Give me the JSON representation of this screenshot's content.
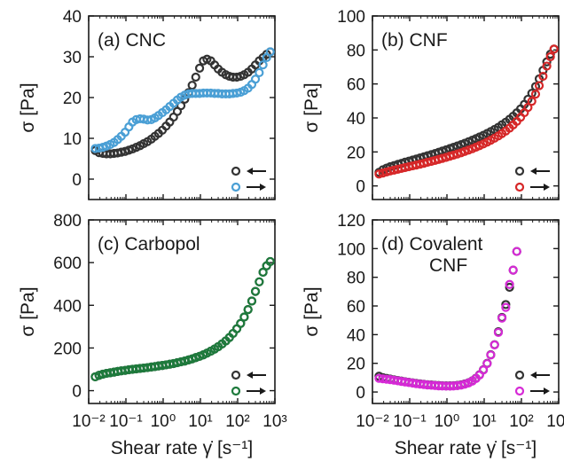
{
  "chart_data": [
    {
      "type": "scatter",
      "title": "(a) CNC",
      "xlabel": "",
      "ylabel": "σ [Pa]",
      "xscale": "log",
      "xlim": [
        0.01,
        1000
      ],
      "ylim": [
        -5,
        40
      ],
      "yticks": [
        "0",
        "10",
        "20",
        "30",
        "40"
      ],
      "xticks": [
        "",
        "",
        "",
        "",
        "",
        ""
      ],
      "legend_position": "bottom-right",
      "series": [
        {
          "marker_color": "#333333",
          "arrow": "←",
          "x": [
            0.015,
            0.019,
            0.024,
            0.03,
            0.038,
            0.048,
            0.06,
            0.075,
            0.095,
            0.12,
            0.15,
            0.19,
            0.24,
            0.3,
            0.38,
            0.48,
            0.6,
            0.75,
            0.95,
            1.2,
            1.5,
            1.9,
            2.4,
            3,
            3.8,
            4.8,
            6,
            7.5,
            9.5,
            12,
            15,
            19,
            24,
            30,
            38,
            48,
            60,
            75,
            95,
            120,
            150,
            190,
            240,
            300,
            380,
            480,
            600,
            750
          ],
          "y": [
            7,
            6.5,
            6.3,
            6.2,
            6.2,
            6.3,
            6.4,
            6.6,
            6.8,
            7.1,
            7.4,
            7.8,
            8.2,
            8.7,
            9.2,
            9.8,
            10.5,
            11.2,
            12,
            13,
            14,
            15.2,
            16.6,
            18,
            19.6,
            21.2,
            23,
            25,
            27.2,
            29,
            29.4,
            29,
            28,
            27,
            26.2,
            25.6,
            25.2,
            25,
            25,
            25.2,
            25.6,
            26.2,
            27,
            28,
            29,
            29.8,
            30.6,
            31.2
          ]
        },
        {
          "marker_color": "#4a9fd5",
          "arrow": "→",
          "x": [
            0.015,
            0.019,
            0.024,
            0.03,
            0.038,
            0.048,
            0.06,
            0.075,
            0.095,
            0.12,
            0.15,
            0.19,
            0.24,
            0.3,
            0.38,
            0.48,
            0.6,
            0.75,
            0.95,
            1.2,
            1.5,
            1.9,
            2.4,
            3,
            3.8,
            4.8,
            6,
            7.5,
            9.5,
            12,
            15,
            19,
            24,
            30,
            38,
            48,
            60,
            75,
            95,
            120,
            150,
            190,
            240,
            300,
            380,
            480,
            600,
            750
          ],
          "y": [
            7.5,
            7.6,
            7.8,
            8.1,
            8.5,
            9,
            9.7,
            10.5,
            11.5,
            12.8,
            14,
            14.6,
            14.8,
            14.7,
            14.5,
            14.6,
            15,
            15.6,
            16.3,
            17,
            17.8,
            18.6,
            19.4,
            20.1,
            20.6,
            20.9,
            21,
            21,
            21,
            21.1,
            21.1,
            21.1,
            21,
            21,
            20.9,
            20.9,
            20.9,
            21,
            21.1,
            21.3,
            21.7,
            22.3,
            23.2,
            24.5,
            26.1,
            28,
            29.8,
            31.2
          ]
        }
      ]
    },
    {
      "type": "scatter",
      "title": "(b) CNF",
      "xlabel": "",
      "ylabel": "σ [Pa]",
      "xscale": "log",
      "xlim": [
        0.01,
        1000
      ],
      "ylim": [
        -8,
        100
      ],
      "yticks": [
        "0",
        "20",
        "40",
        "60",
        "80",
        "100"
      ],
      "xticks": [
        "",
        "",
        "",
        "",
        "",
        ""
      ],
      "legend_position": "bottom-right",
      "series": [
        {
          "marker_color": "#333333",
          "arrow": "←",
          "x": [
            0.015,
            0.019,
            0.024,
            0.03,
            0.038,
            0.048,
            0.06,
            0.075,
            0.095,
            0.12,
            0.15,
            0.19,
            0.24,
            0.3,
            0.38,
            0.48,
            0.6,
            0.75,
            0.95,
            1.2,
            1.5,
            1.9,
            2.4,
            3,
            3.8,
            4.8,
            6,
            7.5,
            9.5,
            12,
            15,
            19,
            24,
            30,
            38,
            48,
            60,
            75,
            95,
            120,
            150,
            190,
            240,
            300,
            380,
            480,
            600,
            750
          ],
          "y": [
            8,
            9.5,
            10.5,
            11.3,
            12,
            12.7,
            13.3,
            14,
            14.6,
            15.2,
            15.8,
            16.5,
            17.1,
            17.8,
            18.4,
            19.1,
            19.8,
            20.5,
            21.2,
            22,
            22.7,
            23.5,
            24.3,
            25.1,
            26,
            26.9,
            27.8,
            28.8,
            29.8,
            30.9,
            32,
            33.2,
            34.5,
            36,
            37.5,
            39.2,
            41,
            43,
            45.3,
            48,
            51,
            54.5,
            58.5,
            63,
            68,
            73,
            77.5,
            80.5
          ]
        },
        {
          "marker_color": "#d62728",
          "arrow": "→",
          "x": [
            0.015,
            0.019,
            0.024,
            0.03,
            0.038,
            0.048,
            0.06,
            0.075,
            0.095,
            0.12,
            0.15,
            0.19,
            0.24,
            0.3,
            0.38,
            0.48,
            0.6,
            0.75,
            0.95,
            1.2,
            1.5,
            1.9,
            2.4,
            3,
            3.8,
            4.8,
            6,
            7.5,
            9.5,
            12,
            15,
            19,
            24,
            30,
            38,
            48,
            60,
            75,
            95,
            120,
            150,
            190,
            240,
            300,
            380,
            480,
            600,
            750
          ],
          "y": [
            7,
            7.6,
            8.2,
            8.8,
            9.3,
            9.8,
            10.3,
            10.8,
            11.3,
            11.8,
            12.3,
            12.8,
            13.3,
            13.9,
            14.4,
            15,
            15.6,
            16.2,
            16.8,
            17.5,
            18.1,
            18.8,
            19.5,
            20.3,
            21.1,
            21.9,
            22.8,
            23.7,
            24.7,
            25.8,
            26.9,
            28.1,
            29.4,
            30.8,
            32.3,
            34,
            35.9,
            38,
            40.4,
            43.1,
            46.2,
            49.8,
            54,
            59,
            64.5,
            70.5,
            76,
            80.5
          ]
        }
      ]
    },
    {
      "type": "scatter",
      "title": "(c) Carbopol",
      "xlabel": "Shear rate γ̇ [s⁻¹]",
      "ylabel": "σ [Pa]",
      "xscale": "log",
      "xlim": [
        0.01,
        1000
      ],
      "ylim": [
        -60,
        800
      ],
      "yticks": [
        "0",
        "200",
        "400",
        "600",
        "800"
      ],
      "xticks": [
        "10⁻²",
        "10⁻¹",
        "10⁰",
        "10¹",
        "10²",
        "10³"
      ],
      "legend_position": "bottom-right",
      "series": [
        {
          "marker_color": "#333333",
          "arrow": "←",
          "x": [
            0.015,
            0.019,
            0.024,
            0.03,
            0.038,
            0.048,
            0.06,
            0.075,
            0.095,
            0.12,
            0.15,
            0.19,
            0.24,
            0.3,
            0.38,
            0.48,
            0.6,
            0.75,
            0.95,
            1.2,
            1.5,
            1.9,
            2.4,
            3,
            3.8,
            4.8,
            6,
            7.5,
            9.5,
            12,
            15,
            19,
            24,
            30,
            38,
            48,
            60,
            75,
            95,
            120,
            150,
            190,
            240,
            300,
            380,
            480,
            600,
            750
          ],
          "y": [
            65,
            72,
            77,
            81,
            84,
            87,
            90,
            93,
            95,
            98,
            100,
            102,
            104,
            106,
            108,
            111,
            113,
            116,
            118,
            121,
            124,
            127,
            131,
            135,
            139,
            144,
            149,
            155,
            161,
            168,
            176,
            185,
            195,
            206,
            219,
            233,
            249,
            268,
            290,
            315,
            345,
            380,
            420,
            465,
            510,
            555,
            585,
            605
          ]
        },
        {
          "marker_color": "#1e7a3c",
          "arrow": "→",
          "x": [
            0.015,
            0.019,
            0.024,
            0.03,
            0.038,
            0.048,
            0.06,
            0.075,
            0.095,
            0.12,
            0.15,
            0.19,
            0.24,
            0.3,
            0.38,
            0.48,
            0.6,
            0.75,
            0.95,
            1.2,
            1.5,
            1.9,
            2.4,
            3,
            3.8,
            4.8,
            6,
            7.5,
            9.5,
            12,
            15,
            19,
            24,
            30,
            38,
            48,
            60,
            75,
            95,
            120,
            150,
            190,
            240,
            300,
            380,
            480,
            600,
            750
          ],
          "y": [
            65,
            72,
            77,
            81,
            84,
            87,
            90,
            93,
            95,
            98,
            100,
            102,
            104,
            106,
            108,
            111,
            113,
            116,
            118,
            121,
            124,
            127,
            131,
            135,
            139,
            144,
            149,
            155,
            161,
            168,
            176,
            185,
            195,
            206,
            219,
            233,
            249,
            268,
            290,
            315,
            345,
            380,
            420,
            465,
            510,
            555,
            585,
            605
          ]
        }
      ]
    },
    {
      "type": "scatter",
      "title": "(d) Covalent",
      "title_line2": "CNF",
      "xlabel": "Shear rate γ̇ [s⁻¹]",
      "ylabel": "σ [Pa]",
      "xscale": "log",
      "xlim": [
        0.01,
        1000
      ],
      "ylim": [
        -8,
        120
      ],
      "yticks": [
        "0",
        "20",
        "40",
        "60",
        "80",
        "100",
        "120"
      ],
      "xticks": [
        "10⁻²",
        "10⁻¹",
        "10⁰",
        "10¹",
        "10²",
        "10³"
      ],
      "legend_position": "bottom-right",
      "series": [
        {
          "marker_color": "#333333",
          "arrow": "←",
          "x": [
            0.015,
            0.019,
            0.024,
            0.03,
            0.038,
            0.048,
            0.06,
            0.075,
            0.095,
            0.12,
            0.15,
            0.19,
            0.24,
            0.3,
            0.38,
            0.48,
            0.6,
            0.75,
            0.95,
            1.2,
            1.5,
            1.9,
            2.4,
            3,
            3.8,
            4.8,
            6,
            7.5,
            9.5,
            12,
            15,
            19,
            24,
            30,
            38,
            48,
            60,
            75
          ],
          "y": [
            11,
            10,
            9.5,
            9,
            8.5,
            8,
            7.6,
            7.2,
            6.8,
            6.4,
            6,
            5.7,
            5.4,
            5.1,
            4.9,
            4.7,
            4.5,
            4.4,
            4.3,
            4.3,
            4.4,
            4.6,
            5,
            5.6,
            6.5,
            7.8,
            9.6,
            12,
            15.5,
            20,
            26,
            33,
            42,
            52,
            61,
            73,
            85,
            98
          ]
        },
        {
          "marker_color": "#d62ad6",
          "arrow": "→",
          "x": [
            0.015,
            0.019,
            0.024,
            0.03,
            0.038,
            0.048,
            0.06,
            0.075,
            0.095,
            0.12,
            0.15,
            0.19,
            0.24,
            0.3,
            0.38,
            0.48,
            0.6,
            0.75,
            0.95,
            1.2,
            1.5,
            1.9,
            2.4,
            3,
            3.8,
            4.8,
            6,
            7.5,
            9.5,
            12,
            15,
            19,
            24,
            30,
            38,
            48,
            60,
            75
          ],
          "y": [
            9.5,
            9.2,
            8.9,
            8.6,
            8.2,
            7.8,
            7.4,
            7,
            6.6,
            6.2,
            5.8,
            5.5,
            5.2,
            4.9,
            4.7,
            4.5,
            4.3,
            4.2,
            4.1,
            4.1,
            4.2,
            4.4,
            4.8,
            5.4,
            6.3,
            7.6,
            9.4,
            11.8,
            15.3,
            19.8,
            25.8,
            32.8,
            41.5,
            51.5,
            59,
            75,
            85,
            98
          ]
        }
      ]
    }
  ]
}
